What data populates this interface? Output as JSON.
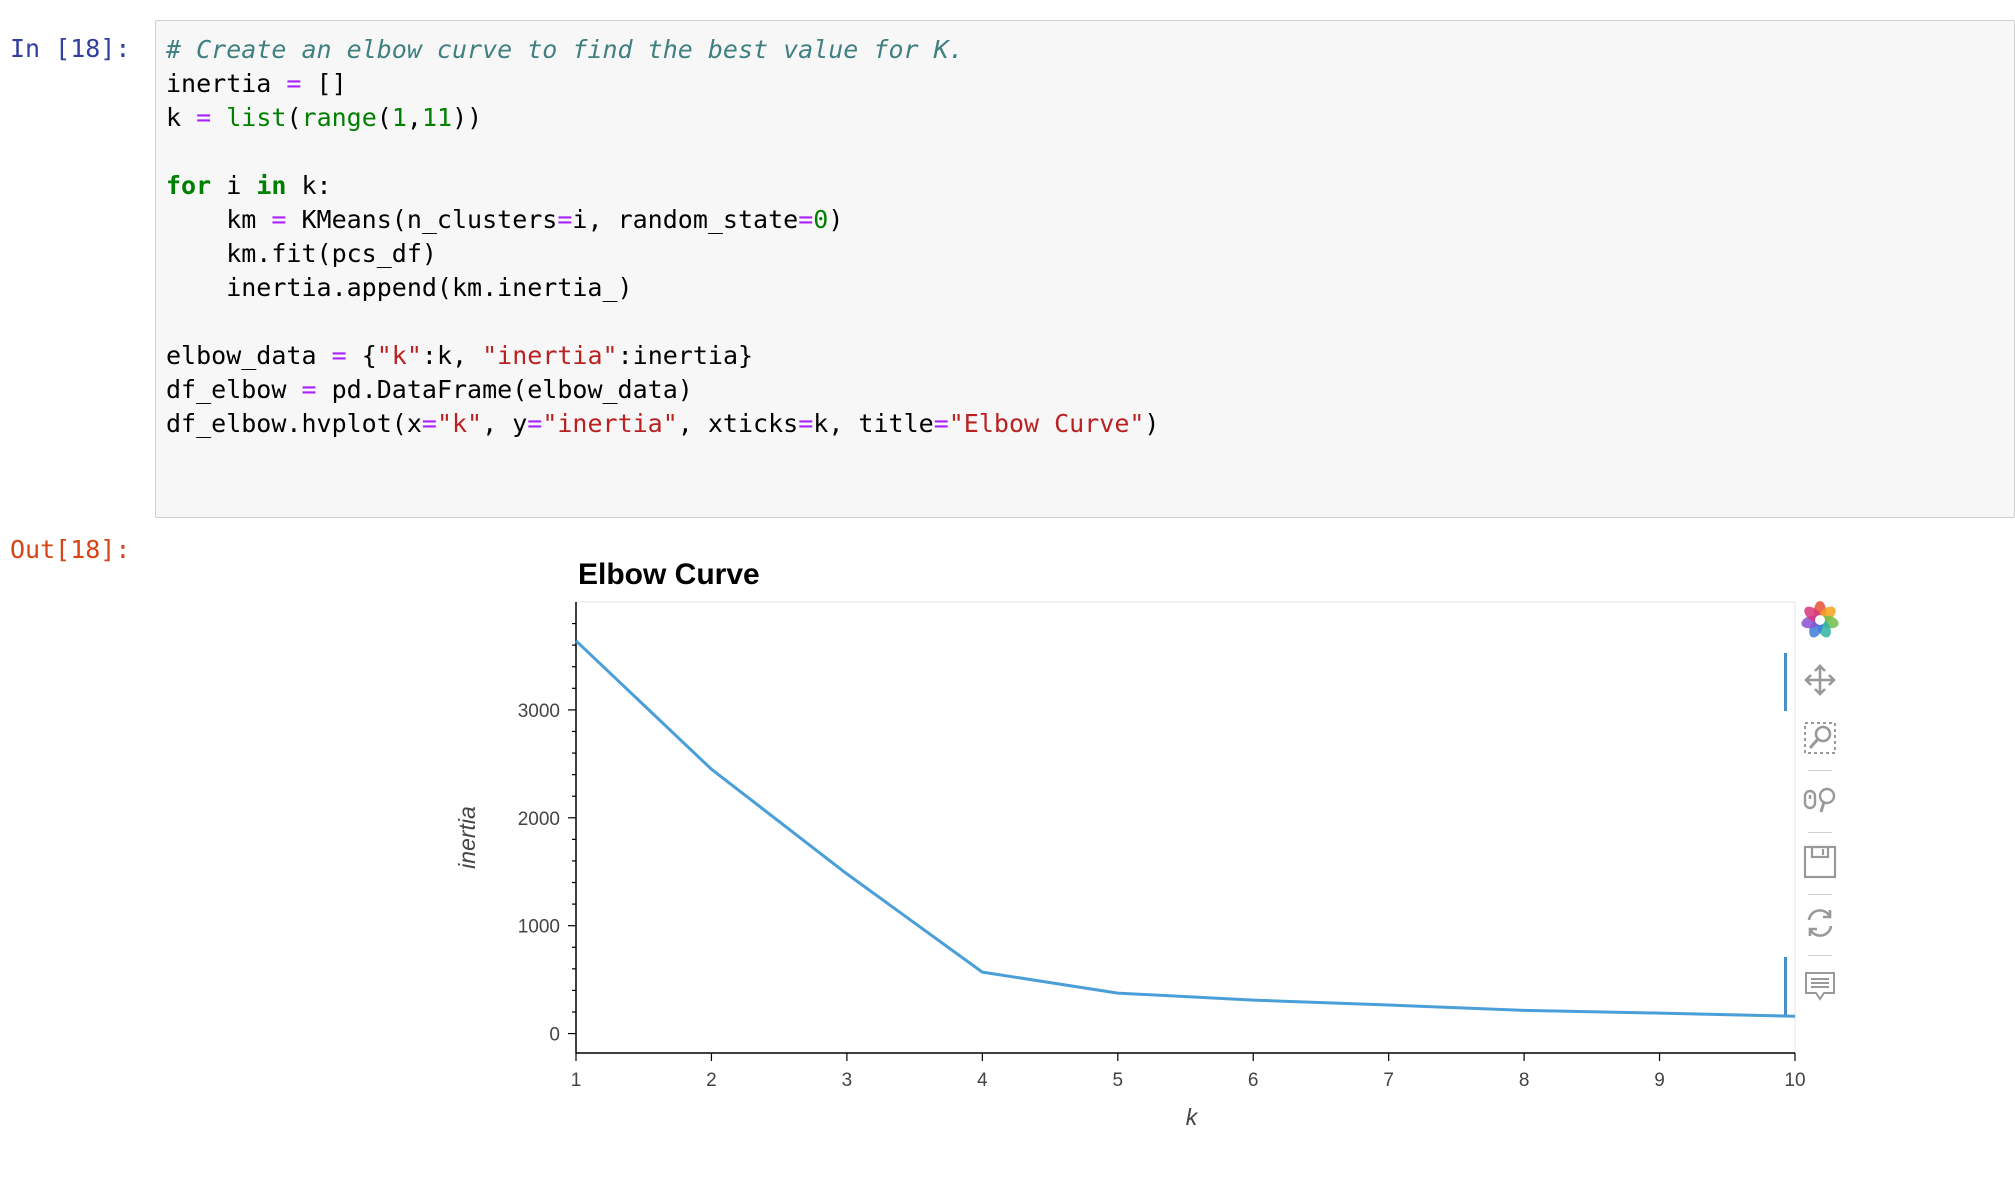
{
  "cell": {
    "in_prompt": "In [18]:",
    "out_prompt": "Out[18]:"
  },
  "code_lines": [
    [
      {
        "t": "# Create an elbow curve to find the best value for K.",
        "c": "comment"
      }
    ],
    [
      {
        "t": "inertia "
      },
      {
        "t": "=",
        "c": "op"
      },
      {
        "t": " []"
      }
    ],
    [
      {
        "t": "k "
      },
      {
        "t": "=",
        "c": "op"
      },
      {
        "t": " "
      },
      {
        "t": "list",
        "c": "builtin"
      },
      {
        "t": "("
      },
      {
        "t": "range",
        "c": "builtin"
      },
      {
        "t": "("
      },
      {
        "t": "1",
        "c": "num"
      },
      {
        "t": ","
      },
      {
        "t": "11",
        "c": "num"
      },
      {
        "t": "))"
      }
    ],
    [],
    [
      {
        "t": "for",
        "c": "kw"
      },
      {
        "t": " i "
      },
      {
        "t": "in",
        "c": "kw"
      },
      {
        "t": " k:"
      }
    ],
    [
      {
        "t": "    km "
      },
      {
        "t": "=",
        "c": "op"
      },
      {
        "t": " KMeans(n_clusters"
      },
      {
        "t": "=",
        "c": "op"
      },
      {
        "t": "i, random_state"
      },
      {
        "t": "=",
        "c": "op"
      },
      {
        "t": "0",
        "c": "num"
      },
      {
        "t": ")"
      }
    ],
    [
      {
        "t": "    km.fit(pcs_df)"
      }
    ],
    [
      {
        "t": "    inertia.append(km.inertia_)"
      }
    ],
    [],
    [
      {
        "t": "elbow_data "
      },
      {
        "t": "=",
        "c": "op"
      },
      {
        "t": " {"
      },
      {
        "t": "\"k\"",
        "c": "str"
      },
      {
        "t": ":k, "
      },
      {
        "t": "\"inertia\"",
        "c": "str"
      },
      {
        "t": ":inertia}"
      }
    ],
    [
      {
        "t": "df_elbow "
      },
      {
        "t": "=",
        "c": "op"
      },
      {
        "t": " pd.DataFrame(elbow_data)"
      }
    ],
    [
      {
        "t": "df_elbow.hvplot(x"
      },
      {
        "t": "=",
        "c": "op"
      },
      {
        "t": "\"k\"",
        "c": "str"
      },
      {
        "t": ", y"
      },
      {
        "t": "=",
        "c": "op"
      },
      {
        "t": "\"inertia\"",
        "c": "str"
      },
      {
        "t": ", xticks"
      },
      {
        "t": "=",
        "c": "op"
      },
      {
        "t": "k, title"
      },
      {
        "t": "=",
        "c": "op"
      },
      {
        "t": "\"Elbow Curve\"",
        "c": "str"
      },
      {
        "t": ")"
      }
    ]
  ],
  "chart_data": {
    "type": "line",
    "title": "Elbow Curve",
    "xlabel": "k",
    "ylabel": "inertia",
    "x": [
      1,
      2,
      3,
      4,
      5,
      6,
      7,
      8,
      9,
      10
    ],
    "series": [
      {
        "values": [
          3640,
          2450,
          1480,
          570,
          375,
          310,
          265,
          215,
          190,
          160
        ]
      }
    ],
    "xticks": [
      "1",
      "2",
      "3",
      "4",
      "5",
      "6",
      "7",
      "8",
      "9",
      "10"
    ],
    "yticks": [
      "0",
      "1000",
      "2000",
      "3000"
    ],
    "xlim": [
      1,
      10
    ],
    "ylim": [
      -180,
      4000
    ],
    "grid": false,
    "line_color": "#4a9fd8"
  },
  "toolbar": {
    "tools": [
      {
        "icon": "bokeh-logo-icon",
        "name": "bokeh-logo-icon"
      },
      {
        "icon": "pan-icon",
        "name": "pan-tool-button"
      },
      {
        "icon": "box-zoom-icon",
        "name": "box-zoom-tool-button"
      },
      {
        "icon": "wheel-zoom-icon",
        "name": "wheel-zoom-tool-button"
      },
      {
        "icon": "save-icon",
        "name": "save-tool-button"
      },
      {
        "icon": "reset-icon",
        "name": "reset-tool-button"
      },
      {
        "icon": "hover-icon",
        "name": "hover-tool-button"
      }
    ]
  }
}
